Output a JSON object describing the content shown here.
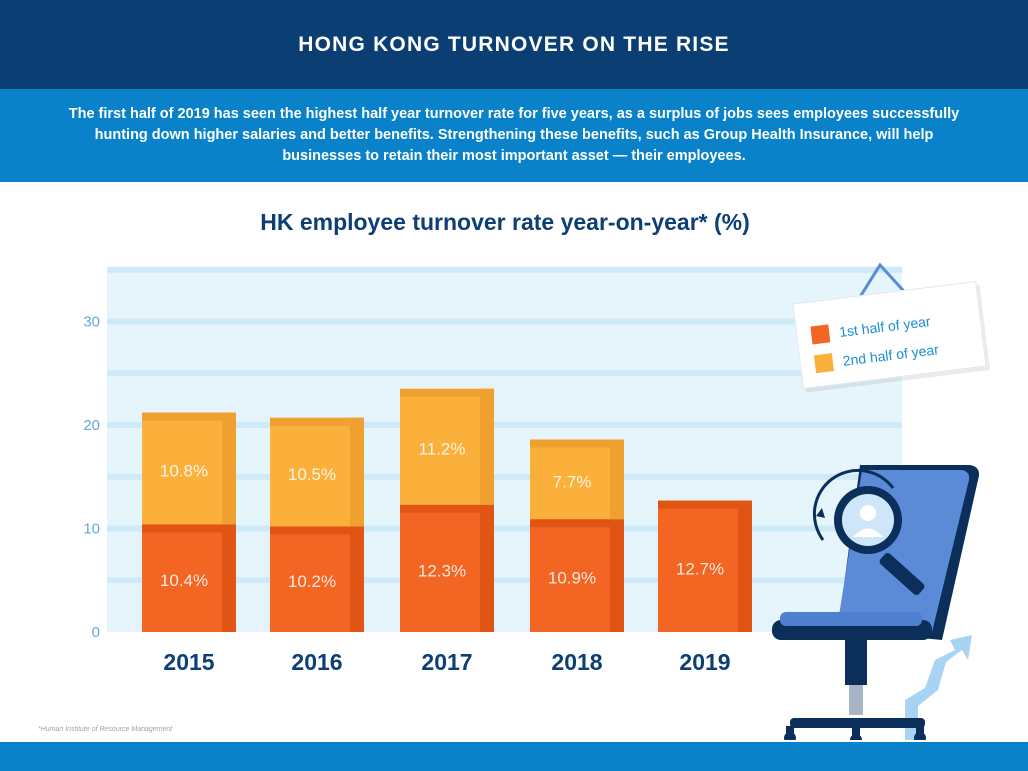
{
  "header": {
    "title": "HONG KONG TURNOVER ON THE RISE"
  },
  "intro": {
    "text": "The first half of 2019 has seen the highest half year turnover rate for five years, as a surplus of jobs sees employees successfully hunting down higher salaries and better benefits. Strengthening these benefits, such as Group Health Insurance, will help businesses to retain their most important asset — their employees."
  },
  "footnote": "*Human Institute of Resource Management",
  "colors": {
    "first_half": "#f26522",
    "first_half_dark": "#e05414",
    "second_half": "#fbb03b",
    "second_half_dark": "#f0a02e",
    "plot_bg": "#e6f5fc",
    "grid": "#cfeaf7",
    "title": "#0d3f74"
  },
  "chart_data": {
    "type": "bar",
    "stacked": true,
    "title": "HK employee turnover rate year-on-year* (%)",
    "xlabel": "",
    "ylabel": "",
    "categories": [
      "2015",
      "2016",
      "2017",
      "2018",
      "2019"
    ],
    "series": [
      {
        "name": "1st half of year",
        "values": [
          10.4,
          10.2,
          12.3,
          10.9,
          12.7
        ]
      },
      {
        "name": "2nd half of year",
        "values": [
          10.8,
          10.5,
          11.2,
          7.7,
          null
        ]
      }
    ],
    "value_labels": [
      [
        "10.4%",
        "10.2%",
        "12.3%",
        "10.9%",
        "12.7%"
      ],
      [
        "10.8%",
        "10.5%",
        "11.2%",
        "7.7%",
        ""
      ]
    ],
    "ylim": [
      0,
      35
    ],
    "yticks": [
      0,
      10,
      20,
      30
    ],
    "grid": true,
    "legend_position": "top-right"
  },
  "decoration": {
    "icon": "office-chair-with-magnifier-icon"
  }
}
